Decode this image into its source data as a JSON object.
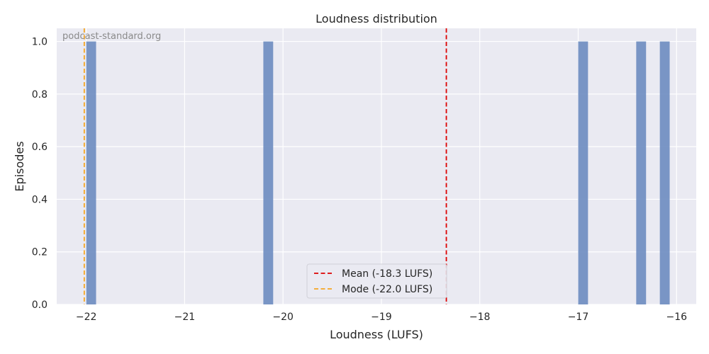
{
  "chart_data": {
    "type": "bar",
    "title": "Loudness distribution",
    "xlabel": "Loudness (LUFS)",
    "ylabel": "Episodes",
    "watermark": "podcast-standard.org",
    "xlim": [
      -22.3,
      -15.8
    ],
    "ylim": [
      0,
      1.05
    ],
    "bin_width": 0.1,
    "bars": [
      {
        "x": -21.95,
        "value": 1
      },
      {
        "x": -20.15,
        "value": 1
      },
      {
        "x": -16.95,
        "value": 1
      },
      {
        "x": -16.36,
        "value": 1
      },
      {
        "x": -16.12,
        "value": 1
      }
    ],
    "xticks": [
      {
        "value": -22,
        "label": "−22"
      },
      {
        "value": -21,
        "label": "−21"
      },
      {
        "value": -20,
        "label": "−20"
      },
      {
        "value": -19,
        "label": "−19"
      },
      {
        "value": -18,
        "label": "−18"
      },
      {
        "value": -17,
        "label": "−17"
      },
      {
        "value": -16,
        "label": "−16"
      }
    ],
    "yticks": [
      {
        "value": 0.0,
        "label": "0.0"
      },
      {
        "value": 0.2,
        "label": "0.2"
      },
      {
        "value": 0.4,
        "label": "0.4"
      },
      {
        "value": 0.6,
        "label": "0.6"
      },
      {
        "value": 0.8,
        "label": "0.8"
      },
      {
        "value": 1.0,
        "label": "1.0"
      }
    ],
    "reference_lines": [
      {
        "x": -18.34,
        "label": "Mean (-18.3 LUFS)",
        "color": "#dd0000"
      },
      {
        "x": -22.02,
        "label": "Mode (-22.0 LUFS)",
        "color": "#f5a623"
      }
    ],
    "grid": true,
    "legend_position": "bottom-center",
    "colors": {
      "bar": "#6d8cc0",
      "plot_bg": "#eaeaf2",
      "grid": "#ffffff"
    }
  }
}
